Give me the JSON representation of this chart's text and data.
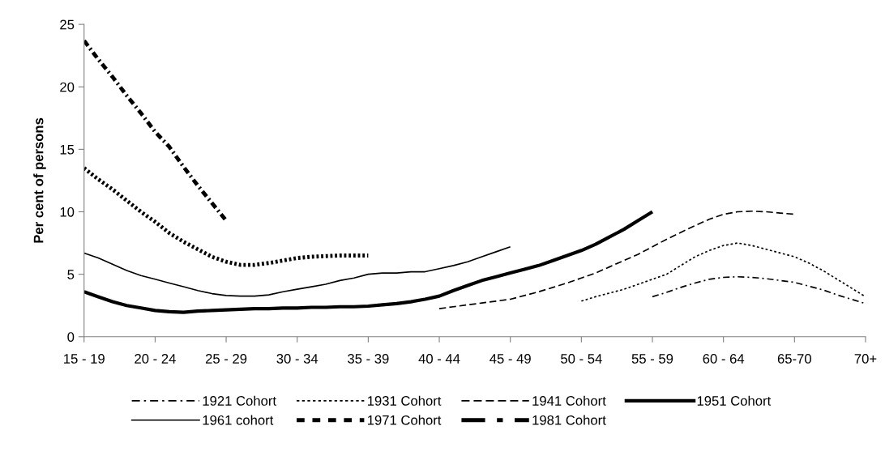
{
  "chart_data": {
    "type": "line",
    "ylabel": "Per cent of persons",
    "categories": [
      "15 - 19",
      null,
      null,
      null,
      null,
      "20 - 24",
      null,
      null,
      null,
      null,
      "25 - 29",
      null,
      null,
      null,
      null,
      "30 - 34",
      null,
      null,
      null,
      null,
      "35 - 39",
      null,
      null,
      null,
      null,
      "40 - 44",
      null,
      null,
      null,
      null,
      "45 - 49",
      null,
      null,
      null,
      null,
      "50 - 54",
      null,
      null,
      null,
      null,
      "55 - 59",
      null,
      null,
      null,
      null,
      "60 - 64",
      null,
      null,
      null,
      null,
      "65-70",
      null,
      null,
      null,
      null,
      "70+"
    ],
    "ylim": [
      0,
      25
    ],
    "yticks": [
      0,
      5,
      10,
      15,
      20,
      25
    ],
    "grid": false,
    "legend": "bottom",
    "marker": "none",
    "series": [
      {
        "name": "1921 Cohort",
        "color": "#000000",
        "line_style": "dashdot",
        "values": [
          null,
          null,
          null,
          null,
          null,
          null,
          null,
          null,
          null,
          null,
          null,
          null,
          null,
          null,
          null,
          null,
          null,
          null,
          null,
          null,
          null,
          null,
          null,
          null,
          null,
          null,
          null,
          null,
          null,
          null,
          null,
          null,
          null,
          null,
          null,
          null,
          null,
          null,
          null,
          null,
          3.2,
          3.55,
          3.95,
          4.3,
          4.6,
          4.75,
          4.8,
          4.75,
          4.65,
          4.5,
          4.35,
          4.05,
          3.75,
          3.35,
          3.0,
          2.65
        ]
      },
      {
        "name": "1931 Cohort",
        "color": "#000000",
        "line_style": "dotted",
        "values": [
          null,
          null,
          null,
          null,
          null,
          null,
          null,
          null,
          null,
          null,
          null,
          null,
          null,
          null,
          null,
          null,
          null,
          null,
          null,
          null,
          null,
          null,
          null,
          null,
          null,
          null,
          null,
          null,
          null,
          null,
          null,
          null,
          null,
          null,
          null,
          2.85,
          3.2,
          3.5,
          3.8,
          4.2,
          4.6,
          5.0,
          5.7,
          6.4,
          6.9,
          7.3,
          7.5,
          7.3,
          7.0,
          6.7,
          6.4,
          5.9,
          5.3,
          4.6,
          3.9,
          3.2
        ]
      },
      {
        "name": "1941 Cohort",
        "color": "#000000",
        "line_style": "dashed",
        "values": [
          null,
          null,
          null,
          null,
          null,
          null,
          null,
          null,
          null,
          null,
          null,
          null,
          null,
          null,
          null,
          null,
          null,
          null,
          null,
          null,
          null,
          null,
          null,
          null,
          null,
          2.25,
          2.4,
          2.55,
          2.7,
          2.85,
          3.0,
          3.3,
          3.6,
          3.95,
          4.3,
          4.7,
          5.1,
          5.6,
          6.1,
          6.6,
          7.2,
          7.8,
          8.35,
          8.9,
          9.4,
          9.8,
          10.0,
          10.05,
          10.0,
          9.9,
          9.8,
          null,
          null,
          null,
          null,
          null
        ]
      },
      {
        "name": "1951 Cohort",
        "color": "#000000",
        "line_style": "solid",
        "values": [
          3.6,
          3.2,
          2.8,
          2.5,
          2.3,
          2.1,
          2.0,
          1.95,
          2.05,
          2.1,
          2.15,
          2.2,
          2.25,
          2.25,
          2.3,
          2.3,
          2.35,
          2.35,
          2.4,
          2.4,
          2.45,
          2.55,
          2.65,
          2.8,
          3.0,
          3.25,
          3.7,
          4.1,
          4.5,
          4.8,
          5.1,
          5.4,
          5.7,
          6.1,
          6.5,
          6.9,
          7.4,
          8.0,
          8.6,
          9.3,
          10.0,
          null,
          null,
          null,
          null,
          null,
          null,
          null,
          null,
          null,
          null,
          null,
          null,
          null,
          null,
          null
        ]
      },
      {
        "name": "1961 cohort",
        "color": "#000000",
        "line_style": "solid",
        "values": [
          6.7,
          6.3,
          5.8,
          5.3,
          4.9,
          4.6,
          4.3,
          4.0,
          3.7,
          3.45,
          3.3,
          3.25,
          3.25,
          3.35,
          3.6,
          3.8,
          4.0,
          4.2,
          4.5,
          4.7,
          5.0,
          5.1,
          5.1,
          5.2,
          5.2,
          5.45,
          5.7,
          6.0,
          6.4,
          6.8,
          7.2,
          null,
          null,
          null,
          null,
          null,
          null,
          null,
          null,
          null,
          null,
          null,
          null,
          null,
          null,
          null,
          null,
          null,
          null,
          null,
          null,
          null,
          null,
          null,
          null,
          null
        ]
      },
      {
        "name": "1971 Cohort",
        "color": "#000000",
        "line_style": "dotted",
        "values": [
          13.5,
          12.6,
          11.8,
          10.9,
          10.0,
          9.2,
          8.3,
          7.6,
          7.0,
          6.4,
          6.0,
          5.75,
          5.75,
          5.9,
          6.1,
          6.3,
          6.4,
          6.45,
          6.5,
          6.5,
          6.5,
          null,
          null,
          null,
          null,
          null,
          null,
          null,
          null,
          null,
          null,
          null,
          null,
          null,
          null,
          null,
          null,
          null,
          null,
          null,
          null,
          null,
          null,
          null,
          null,
          null,
          null,
          null,
          null,
          null,
          null,
          null,
          null,
          null,
          null,
          null
        ]
      },
      {
        "name": "1981 Cohort",
        "color": "#000000",
        "line_style": "dashdot",
        "values": [
          23.7,
          22.2,
          20.8,
          19.3,
          17.9,
          16.4,
          15.2,
          13.6,
          12.1,
          10.7,
          9.3,
          null,
          null,
          null,
          null,
          null,
          null,
          null,
          null,
          null,
          null,
          null,
          null,
          null,
          null,
          null,
          null,
          null,
          null,
          null,
          null,
          null,
          null,
          null,
          null,
          null,
          null,
          null,
          null,
          null,
          null,
          null,
          null,
          null,
          null,
          null,
          null,
          null,
          null,
          null,
          null,
          null,
          null,
          null,
          null,
          null
        ]
      }
    ]
  }
}
